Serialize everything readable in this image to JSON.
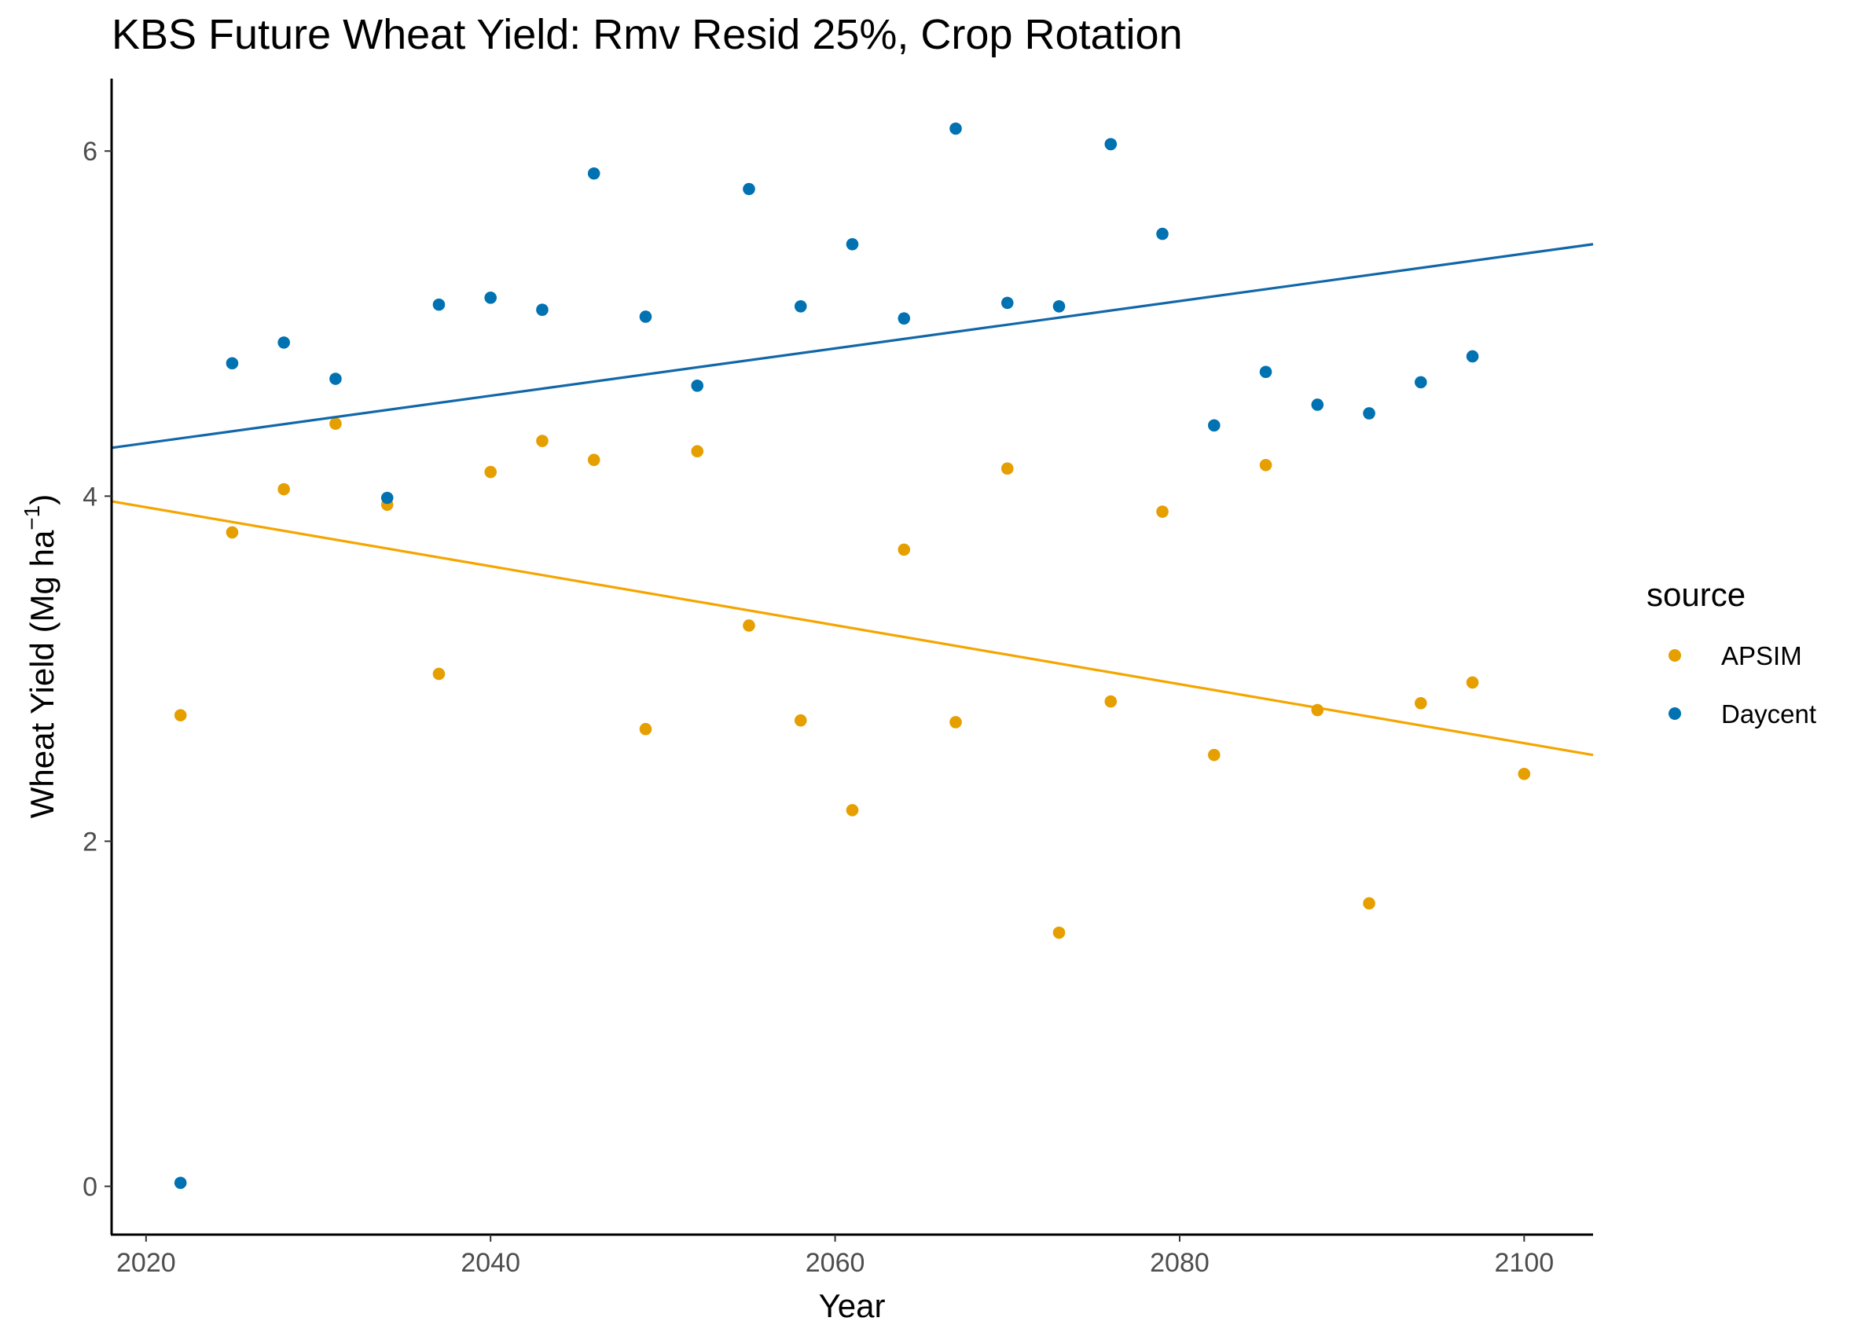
{
  "chart_data": {
    "type": "scatter",
    "title": "KBS Future Wheat Yield:  Rmv Resid 25%, Crop Rotation",
    "xlabel": "Year",
    "ylabel_main": "Wheat Yield (Mg ha",
    "ylabel_sup": "−1",
    "ylabel_close": ")",
    "xlim": [
      2018,
      2104
    ],
    "ylim": [
      -0.28,
      6.42
    ],
    "x_ticks": [
      2020,
      2040,
      2060,
      2080,
      2100
    ],
    "x_tick_labels": [
      "2020",
      "2040",
      "2060",
      "2080",
      "2100"
    ],
    "y_ticks": [
      0,
      2,
      4,
      6
    ],
    "y_tick_labels": [
      "0",
      "2",
      "4",
      "6"
    ],
    "grid": false,
    "legend": {
      "title": "source",
      "position": "right"
    },
    "series": [
      {
        "name": "APSIM",
        "color": "#E69F00",
        "trend_color": "#F5A500",
        "x": [
          2022,
          2025,
          2028,
          2031,
          2034,
          2037,
          2040,
          2043,
          2046,
          2049,
          2052,
          2055,
          2058,
          2061,
          2064,
          2067,
          2070,
          2073,
          2076,
          2079,
          2082,
          2085,
          2088,
          2091,
          2094,
          2097,
          2100
        ],
        "y": [
          2.73,
          3.79,
          4.04,
          4.42,
          3.95,
          2.97,
          4.14,
          4.32,
          4.21,
          2.65,
          4.26,
          3.25,
          2.7,
          2.18,
          3.69,
          2.69,
          4.16,
          1.47,
          2.81,
          3.91,
          2.5,
          4.18,
          2.76,
          1.64,
          2.8,
          2.92,
          2.39
        ],
        "trend": {
          "x": [
            2018,
            2104
          ],
          "y": [
            3.97,
            2.5
          ]
        }
      },
      {
        "name": "Daycent",
        "color": "#0072B2",
        "trend_color": "#1167A8",
        "x": [
          2022,
          2025,
          2028,
          2031,
          2034,
          2037,
          2040,
          2043,
          2046,
          2049,
          2052,
          2055,
          2058,
          2061,
          2064,
          2067,
          2070,
          2073,
          2076,
          2079,
          2082,
          2085,
          2088,
          2091,
          2094,
          2097
        ],
        "y": [
          0.02,
          4.77,
          4.89,
          4.68,
          3.99,
          5.11,
          5.15,
          5.08,
          5.87,
          5.04,
          4.64,
          5.78,
          5.1,
          5.46,
          5.03,
          6.13,
          5.12,
          5.1,
          6.04,
          5.52,
          4.41,
          4.72,
          4.53,
          4.48,
          4.66,
          4.81
        ],
        "trend": {
          "x": [
            2018,
            2104
          ],
          "y": [
            4.28,
            5.46
          ]
        }
      }
    ]
  }
}
